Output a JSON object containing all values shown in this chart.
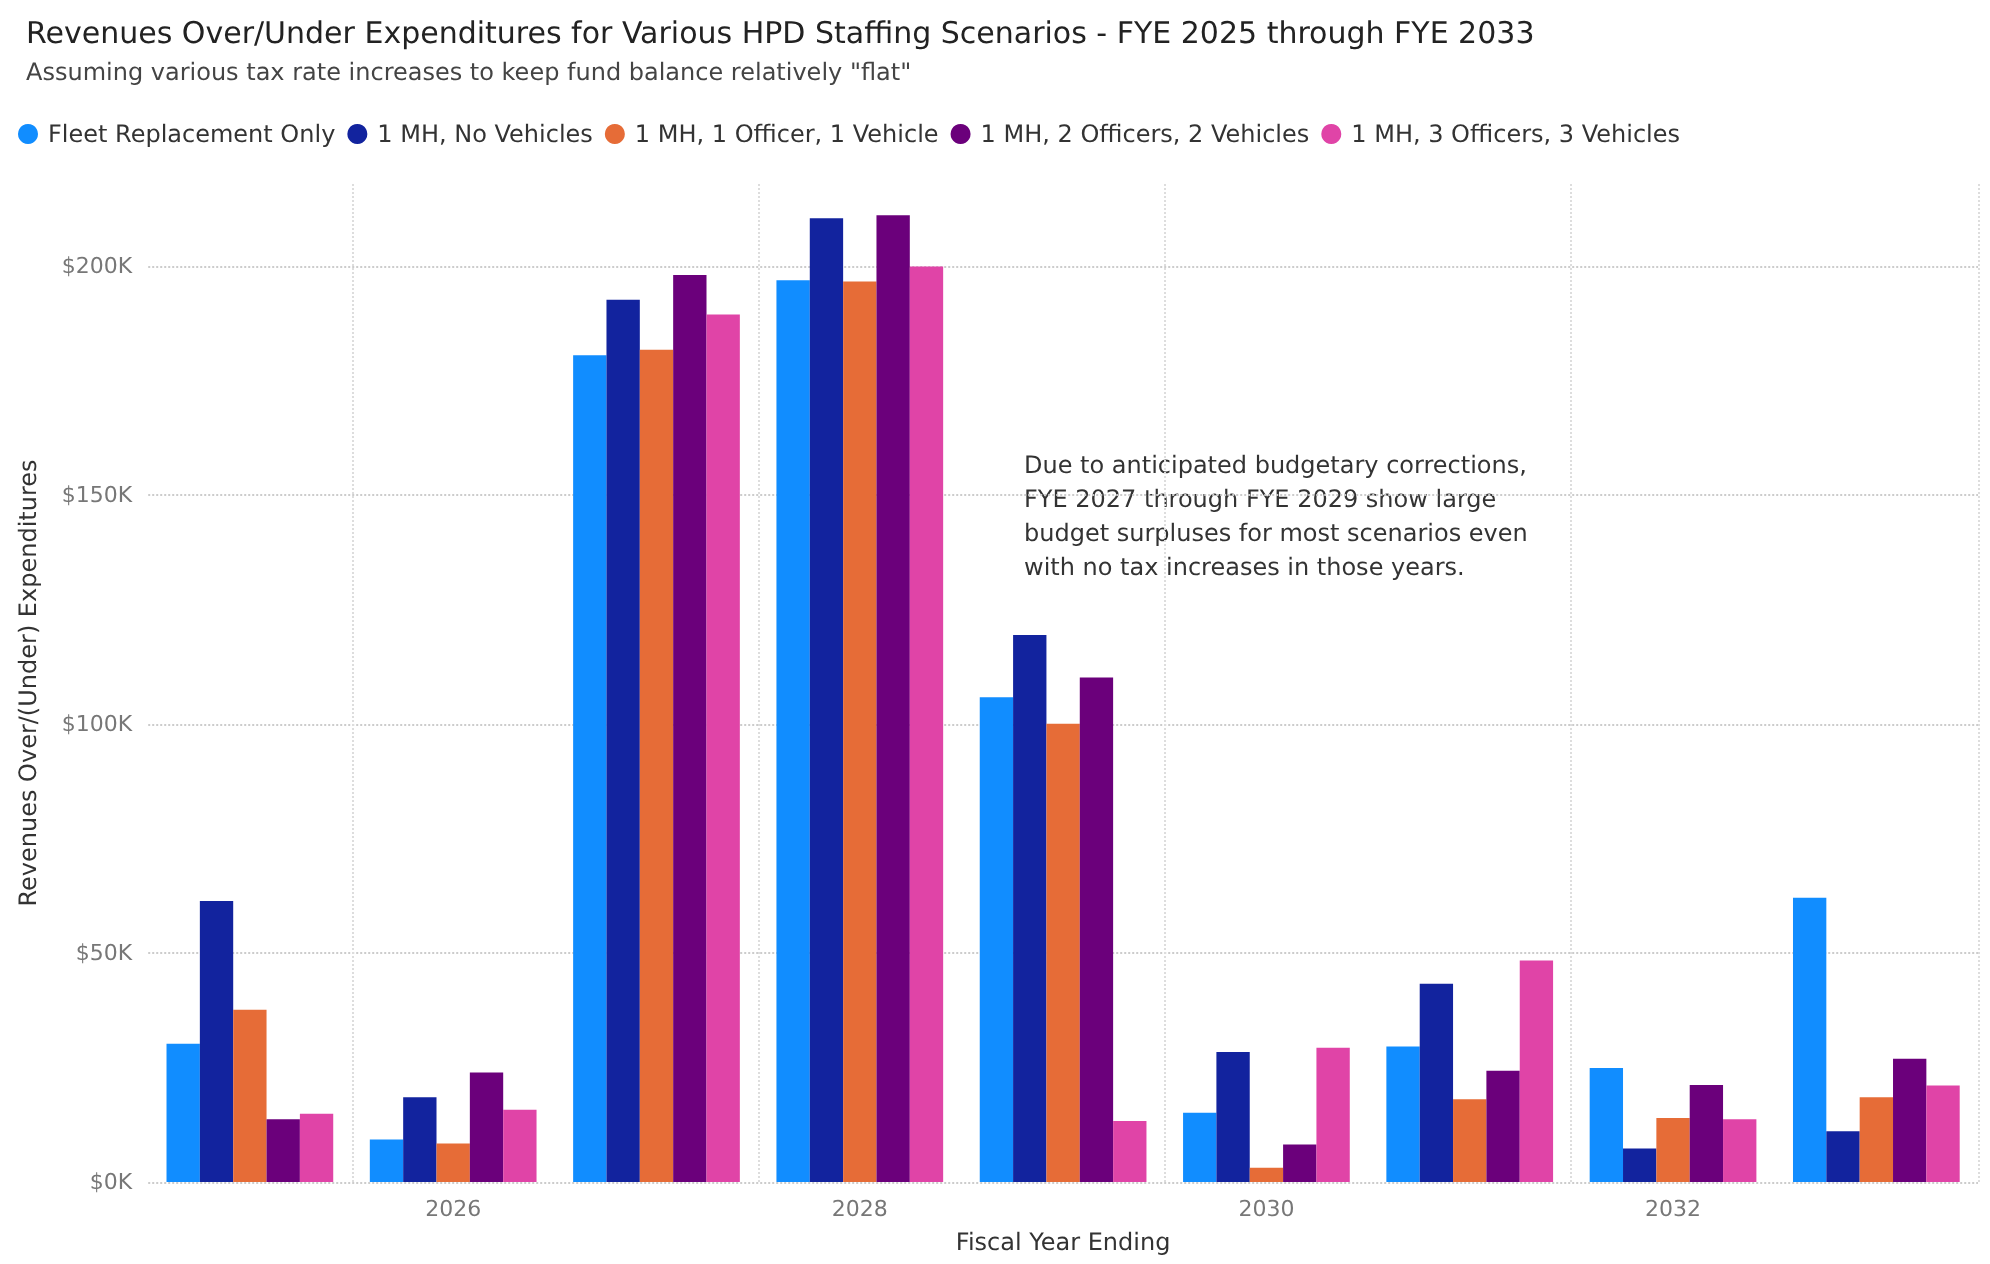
{
  "chart_data": {
    "type": "bar",
    "title": "Revenues Over/Under Expenditures for Various HPD Staffing Scenarios - FYE 2025 through FYE 2033",
    "subtitle": "Assuming various tax rate increases to keep fund balance relatively \"flat\"",
    "xlabel": "Fiscal Year Ending",
    "ylabel": "Revenues Over/(Under) Expenditures",
    "categories": [
      null,
      "2026",
      null,
      "2028",
      null,
      "2030",
      null,
      "2032",
      null
    ],
    "series": [
      {
        "name": "Fleet Replacement Only",
        "color": "#118dff",
        "values": [
          30.2,
          9.3,
          180.6,
          197.0,
          105.9,
          15.1,
          29.6,
          24.9,
          62.1
        ]
      },
      {
        "name": "1 MH, No Vehicles",
        "color": "#12239e",
        "values": [
          61.4,
          18.5,
          192.7,
          210.5,
          119.5,
          28.4,
          43.3,
          7.3,
          11.1
        ]
      },
      {
        "name": "1 MH, 1 Officer, 1 Vehicle",
        "color": "#e66c37",
        "values": [
          37.6,
          8.4,
          181.8,
          196.7,
          100.1,
          3.1,
          18.1,
          14.0,
          18.5
        ]
      },
      {
        "name": "1 MH, 2 Officers, 2 Vehicles",
        "color": "#6b007b",
        "values": [
          13.7,
          23.9,
          198.1,
          211.2,
          110.2,
          8.2,
          24.3,
          21.2,
          26.9
        ]
      },
      {
        "name": "1 MH, 3 Officers, 3 Vehicles",
        "color": "#e044a7",
        "values": [
          14.9,
          15.8,
          189.5,
          200.0,
          13.3,
          29.3,
          48.4,
          13.7,
          21.1
        ]
      }
    ],
    "ylim": [
      0,
      218
    ],
    "yticks": [
      {
        "value": 0,
        "label": "$0K"
      },
      {
        "value": 50,
        "label": "$50K"
      },
      {
        "value": 100,
        "label": "$100K"
      },
      {
        "value": 150,
        "label": "$150K"
      },
      {
        "value": 200,
        "label": "$200K"
      }
    ],
    "annotations": [
      "Due to anticipated budgetary corrections, FYE 2027 through FYE 2029 show large budget surpluses for most scenarios even with no tax increases in those years."
    ],
    "grid": true,
    "legend": "top left"
  }
}
